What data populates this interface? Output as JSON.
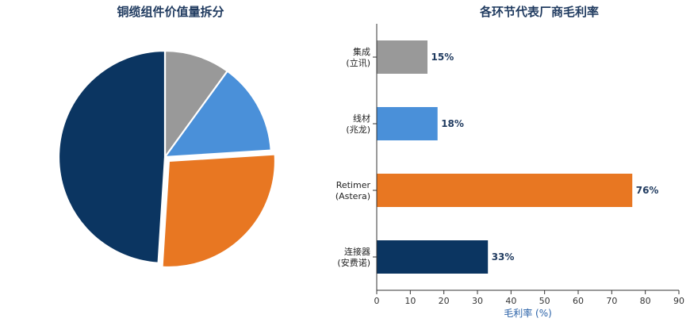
{
  "chart_data": [
    {
      "type": "pie",
      "title": "铜缆组件价值量拆分",
      "slices": [
        {
          "value": 10,
          "color": "#999999",
          "exploded": false
        },
        {
          "value": 14,
          "color": "#4a90d9",
          "exploded": false
        },
        {
          "value": 27,
          "color": "#e87722",
          "exploded": true
        },
        {
          "value": 49,
          "color": "#0b3561",
          "exploded": false
        }
      ]
    },
    {
      "type": "bar",
      "orientation": "horizontal",
      "title": "各环节代表厂商毛利率",
      "categories": [
        {
          "line1": "集成",
          "line2": "(立讯)"
        },
        {
          "line1": "线材",
          "line2": "(兆龙)"
        },
        {
          "line1": "Retimer",
          "line2": "(Astera)"
        },
        {
          "line1": "连接器",
          "line2": "(安费诺)"
        }
      ],
      "values": [
        15,
        18,
        76,
        33
      ],
      "data_labels": [
        "15%",
        "18%",
        "76%",
        "33%"
      ],
      "colors": [
        "#999999",
        "#4a90d9",
        "#e87722",
        "#0b3561"
      ],
      "xlabel": "毛利率 (%)",
      "xlim": [
        0,
        90
      ],
      "xticks": [
        0,
        10,
        20,
        30,
        40,
        50,
        60,
        70,
        80,
        90
      ]
    }
  ]
}
